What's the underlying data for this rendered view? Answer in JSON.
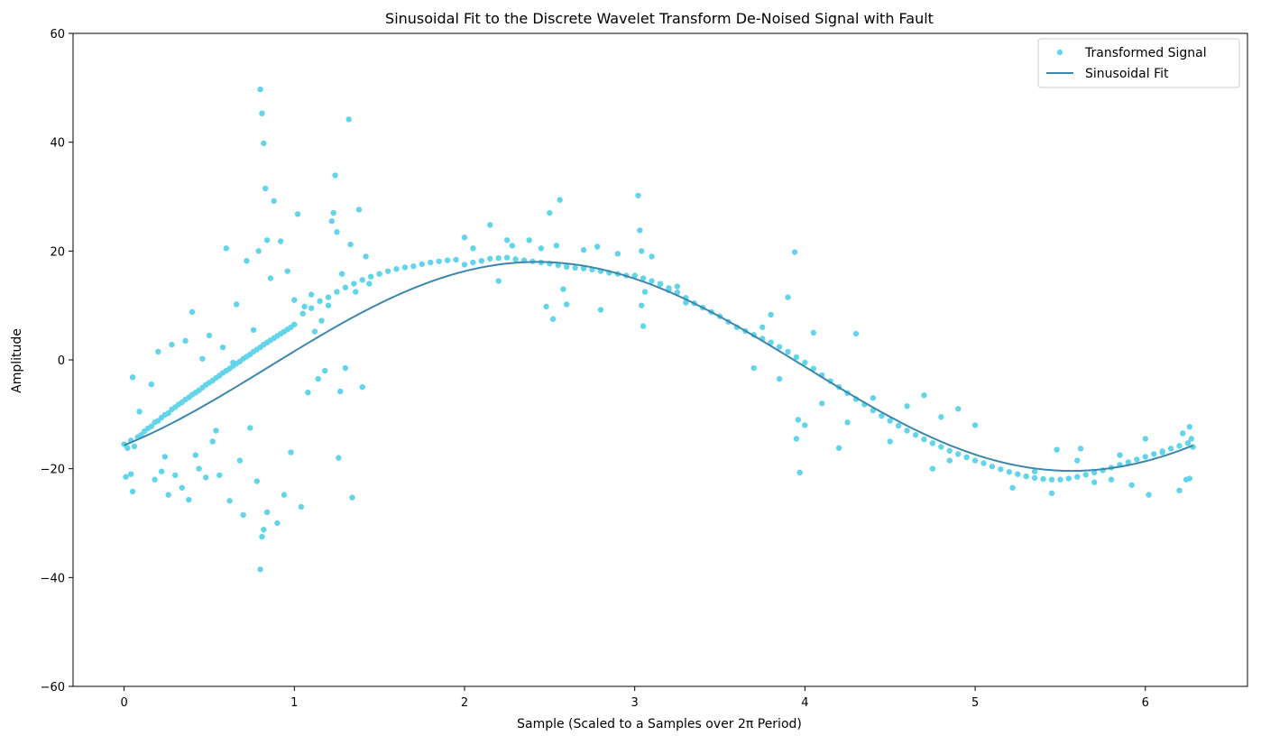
{
  "chart_data": {
    "type": "scatter",
    "title": "Sinusoidal Fit to the Discrete Wavelet Transform De-Noised Signal with Fault",
    "xlabel": "Sample (Scaled to a Samples over 2π Period)",
    "ylabel": "Amplitude",
    "xlim": [
      -0.3,
      6.6
    ],
    "ylim": [
      -60,
      60
    ],
    "xticks": [
      0,
      1,
      2,
      3,
      4,
      5,
      6
    ],
    "xtick_labels": [
      "0",
      "1",
      "2",
      "3",
      "4",
      "5",
      "6"
    ],
    "yticks": [
      -60,
      -40,
      -20,
      0,
      20,
      40,
      60
    ],
    "ytick_labels": [
      "−60",
      "−40",
      "−20",
      "0",
      "20",
      "40",
      "60"
    ],
    "grid": false,
    "legend_position": "top-right",
    "series": [
      {
        "name": "Transformed Signal",
        "kind": "scatter",
        "color": "#62d5ea",
        "points": [
          [
            0.0,
            -15.5
          ],
          [
            0.02,
            -16.2
          ],
          [
            0.04,
            -14.8
          ],
          [
            0.06,
            -15.9
          ],
          [
            0.08,
            -14.2
          ],
          [
            0.1,
            -13.8
          ],
          [
            0.12,
            -13.1
          ],
          [
            0.14,
            -12.6
          ],
          [
            0.16,
            -12.2
          ],
          [
            0.18,
            -11.5
          ],
          [
            0.2,
            -11.2
          ],
          [
            0.22,
            -10.6
          ],
          [
            0.24,
            -10.1
          ],
          [
            0.26,
            -9.8
          ],
          [
            0.28,
            -9.1
          ],
          [
            0.3,
            -8.7
          ],
          [
            0.32,
            -8.2
          ],
          [
            0.34,
            -7.8
          ],
          [
            0.36,
            -7.3
          ],
          [
            0.38,
            -6.9
          ],
          [
            0.4,
            -6.4
          ],
          [
            0.42,
            -6.0
          ],
          [
            0.44,
            -5.6
          ],
          [
            0.46,
            -5.1
          ],
          [
            0.48,
            -4.6
          ],
          [
            0.5,
            -4.2
          ],
          [
            0.52,
            -3.8
          ],
          [
            0.54,
            -3.3
          ],
          [
            0.56,
            -2.9
          ],
          [
            0.58,
            -2.4
          ],
          [
            0.6,
            -2.0
          ],
          [
            0.62,
            -1.6
          ],
          [
            0.64,
            -1.1
          ],
          [
            0.66,
            -0.7
          ],
          [
            0.68,
            -0.3
          ],
          [
            0.7,
            0.2
          ],
          [
            0.72,
            0.6
          ],
          [
            0.74,
            1.0
          ],
          [
            0.76,
            1.5
          ],
          [
            0.78,
            1.9
          ],
          [
            0.8,
            2.3
          ],
          [
            0.82,
            2.8
          ],
          [
            0.84,
            3.2
          ],
          [
            0.86,
            3.6
          ],
          [
            0.88,
            4.0
          ],
          [
            0.9,
            4.4
          ],
          [
            0.92,
            4.8
          ],
          [
            0.94,
            5.2
          ],
          [
            0.96,
            5.6
          ],
          [
            0.98,
            6.0
          ],
          [
            0.01,
            -21.5
          ],
          [
            0.05,
            -24.2
          ],
          [
            0.04,
            -21.0
          ],
          [
            0.05,
            -3.2
          ],
          [
            0.09,
            -9.5
          ],
          [
            0.16,
            -4.5
          ],
          [
            0.18,
            -22.0
          ],
          [
            0.2,
            1.5
          ],
          [
            0.22,
            -20.5
          ],
          [
            0.24,
            -17.8
          ],
          [
            0.26,
            -24.8
          ],
          [
            0.28,
            2.8
          ],
          [
            0.3,
            -21.2
          ],
          [
            0.34,
            -23.5
          ],
          [
            0.36,
            3.5
          ],
          [
            0.38,
            -25.7
          ],
          [
            0.4,
            8.8
          ],
          [
            0.42,
            -17.5
          ],
          [
            0.44,
            -20.0
          ],
          [
            0.46,
            0.2
          ],
          [
            0.48,
            -21.6
          ],
          [
            0.5,
            4.5
          ],
          [
            0.52,
            -15.0
          ],
          [
            0.54,
            -13.0
          ],
          [
            0.56,
            -21.2
          ],
          [
            0.58,
            2.3
          ],
          [
            0.6,
            20.5
          ],
          [
            0.62,
            -25.9
          ],
          [
            0.64,
            -0.5
          ],
          [
            0.66,
            10.2
          ],
          [
            0.68,
            -18.5
          ],
          [
            0.7,
            -28.5
          ],
          [
            0.72,
            18.2
          ],
          [
            0.74,
            -12.5
          ],
          [
            0.76,
            5.5
          ],
          [
            0.78,
            -22.3
          ],
          [
            0.8,
            49.7
          ],
          [
            0.81,
            45.3
          ],
          [
            0.82,
            39.8
          ],
          [
            0.83,
            31.5
          ],
          [
            0.84,
            22.0
          ],
          [
            0.79,
            20.0
          ],
          [
            0.8,
            -38.5
          ],
          [
            0.81,
            -32.5
          ],
          [
            0.82,
            -31.2
          ],
          [
            0.84,
            -28.0
          ],
          [
            0.86,
            15.0
          ],
          [
            0.88,
            29.2
          ],
          [
            0.9,
            -30.0
          ],
          [
            0.92,
            21.8
          ],
          [
            0.94,
            -24.8
          ],
          [
            0.96,
            16.3
          ],
          [
            0.98,
            -17.0
          ],
          [
            1.0,
            11.0
          ],
          [
            1.02,
            26.8
          ],
          [
            1.04,
            -27.0
          ],
          [
            1.06,
            9.8
          ],
          [
            1.08,
            -6.0
          ],
          [
            1.1,
            12.0
          ],
          [
            1.12,
            5.2
          ],
          [
            1.14,
            -3.5
          ],
          [
            1.16,
            7.2
          ],
          [
            1.18,
            -2.0
          ],
          [
            1.2,
            10.0
          ],
          [
            1.22,
            25.5
          ],
          [
            1.23,
            27.0
          ],
          [
            1.24,
            33.9
          ],
          [
            1.25,
            23.5
          ],
          [
            1.26,
            -18.0
          ],
          [
            1.27,
            -5.8
          ],
          [
            1.28,
            15.8
          ],
          [
            1.3,
            -1.5
          ],
          [
            1.32,
            44.2
          ],
          [
            1.33,
            21.2
          ],
          [
            1.34,
            -25.3
          ],
          [
            1.36,
            12.5
          ],
          [
            1.38,
            27.6
          ],
          [
            1.4,
            -5.0
          ],
          [
            1.42,
            19.0
          ],
          [
            1.44,
            14.0
          ],
          [
            1.0,
            6.5
          ],
          [
            1.05,
            8.5
          ],
          [
            1.1,
            9.5
          ],
          [
            1.15,
            10.8
          ],
          [
            1.2,
            11.5
          ],
          [
            1.25,
            12.5
          ],
          [
            1.3,
            13.3
          ],
          [
            1.35,
            14.0
          ],
          [
            1.4,
            14.7
          ],
          [
            1.45,
            15.3
          ],
          [
            1.5,
            15.8
          ],
          [
            1.55,
            16.3
          ],
          [
            1.6,
            16.7
          ],
          [
            1.65,
            17.0
          ],
          [
            1.7,
            17.2
          ],
          [
            1.75,
            17.6
          ],
          [
            1.8,
            17.9
          ],
          [
            1.85,
            18.1
          ],
          [
            1.9,
            18.3
          ],
          [
            1.95,
            18.4
          ],
          [
            2.0,
            17.5
          ],
          [
            2.05,
            17.9
          ],
          [
            2.1,
            18.2
          ],
          [
            2.15,
            18.6
          ],
          [
            2.2,
            18.7
          ],
          [
            2.25,
            18.8
          ],
          [
            2.3,
            18.5
          ],
          [
            2.35,
            18.3
          ],
          [
            2.4,
            18.1
          ],
          [
            2.45,
            17.9
          ],
          [
            2.5,
            17.7
          ],
          [
            2.55,
            17.4
          ],
          [
            2.6,
            17.1
          ],
          [
            2.65,
            16.9
          ],
          [
            2.7,
            16.8
          ],
          [
            2.75,
            16.6
          ],
          [
            2.8,
            16.3
          ],
          [
            2.85,
            16.0
          ],
          [
            2.9,
            15.8
          ],
          [
            2.95,
            15.5
          ],
          [
            2.0,
            22.5
          ],
          [
            2.05,
            20.5
          ],
          [
            2.15,
            24.8
          ],
          [
            2.2,
            14.5
          ],
          [
            2.25,
            22.0
          ],
          [
            2.28,
            21.0
          ],
          [
            2.38,
            22.0
          ],
          [
            2.45,
            20.5
          ],
          [
            2.48,
            9.8
          ],
          [
            2.5,
            27.0
          ],
          [
            2.52,
            7.5
          ],
          [
            2.54,
            21.0
          ],
          [
            2.56,
            29.4
          ],
          [
            2.58,
            13.0
          ],
          [
            2.6,
            10.2
          ],
          [
            2.7,
            20.2
          ],
          [
            2.78,
            20.8
          ],
          [
            2.8,
            9.2
          ],
          [
            2.9,
            19.5
          ],
          [
            3.02,
            30.2
          ],
          [
            3.03,
            23.8
          ],
          [
            3.04,
            20.0
          ],
          [
            3.04,
            10.0
          ],
          [
            3.05,
            6.2
          ],
          [
            3.06,
            12.5
          ],
          [
            3.1,
            19.0
          ],
          [
            3.15,
            14.0
          ],
          [
            3.2,
            12.8
          ],
          [
            3.25,
            13.5
          ],
          [
            3.3,
            10.5
          ],
          [
            3.0,
            15.5
          ],
          [
            3.05,
            15.0
          ],
          [
            3.1,
            14.5
          ],
          [
            3.15,
            13.9
          ],
          [
            3.2,
            13.2
          ],
          [
            3.25,
            12.4
          ],
          [
            3.3,
            11.4
          ],
          [
            3.35,
            10.4
          ],
          [
            3.4,
            9.6
          ],
          [
            3.45,
            8.8
          ],
          [
            3.5,
            8.0
          ],
          [
            3.55,
            7.0
          ],
          [
            3.6,
            6.0
          ],
          [
            3.65,
            5.3
          ],
          [
            3.7,
            4.6
          ],
          [
            3.75,
            3.9
          ],
          [
            3.8,
            3.2
          ],
          [
            3.85,
            2.4
          ],
          [
            3.9,
            1.5
          ],
          [
            3.95,
            0.5
          ],
          [
            4.0,
            -0.5
          ],
          [
            4.05,
            -1.6
          ],
          [
            4.1,
            -2.8
          ],
          [
            4.15,
            -3.9
          ],
          [
            4.2,
            -5.0
          ],
          [
            4.25,
            -6.1
          ],
          [
            4.3,
            -7.2
          ],
          [
            4.35,
            -8.2
          ],
          [
            4.4,
            -9.3
          ],
          [
            4.45,
            -10.3
          ],
          [
            4.5,
            -11.2
          ],
          [
            4.55,
            -12.1
          ],
          [
            4.6,
            -13.0
          ],
          [
            4.65,
            -13.8
          ],
          [
            4.7,
            -14.6
          ],
          [
            4.75,
            -15.3
          ],
          [
            4.8,
            -16.0
          ],
          [
            4.85,
            -16.7
          ],
          [
            4.9,
            -17.3
          ],
          [
            4.95,
            -17.9
          ],
          [
            3.7,
            -1.5
          ],
          [
            3.75,
            6.0
          ],
          [
            3.8,
            8.3
          ],
          [
            3.85,
            -3.5
          ],
          [
            3.9,
            11.5
          ],
          [
            3.94,
            19.8
          ],
          [
            3.95,
            -14.5
          ],
          [
            3.96,
            -11.0
          ],
          [
            3.97,
            -20.7
          ],
          [
            4.0,
            -12.0
          ],
          [
            4.05,
            5.0
          ],
          [
            4.1,
            -8.0
          ],
          [
            4.2,
            -16.2
          ],
          [
            4.25,
            -11.5
          ],
          [
            4.3,
            4.8
          ],
          [
            4.4,
            -7.0
          ],
          [
            4.5,
            -15.0
          ],
          [
            4.6,
            -8.5
          ],
          [
            4.7,
            -6.5
          ],
          [
            4.75,
            -20.0
          ],
          [
            4.8,
            -10.5
          ],
          [
            4.85,
            -18.5
          ],
          [
            4.9,
            -9.0
          ],
          [
            5.0,
            -12.0
          ],
          [
            5.0,
            -18.5
          ],
          [
            5.05,
            -19.0
          ],
          [
            5.1,
            -19.6
          ],
          [
            5.15,
            -20.1
          ],
          [
            5.2,
            -20.6
          ],
          [
            5.25,
            -21.0
          ],
          [
            5.3,
            -21.4
          ],
          [
            5.35,
            -21.7
          ],
          [
            5.4,
            -21.9
          ],
          [
            5.45,
            -22.0
          ],
          [
            5.5,
            -22.0
          ],
          [
            5.55,
            -21.8
          ],
          [
            5.6,
            -21.5
          ],
          [
            5.65,
            -21.1
          ],
          [
            5.7,
            -20.7
          ],
          [
            5.75,
            -20.3
          ],
          [
            5.8,
            -19.8
          ],
          [
            5.85,
            -19.3
          ],
          [
            5.9,
            -18.8
          ],
          [
            5.95,
            -18.3
          ],
          [
            6.0,
            -17.8
          ],
          [
            6.05,
            -17.3
          ],
          [
            6.1,
            -16.8
          ],
          [
            6.15,
            -16.3
          ],
          [
            6.2,
            -15.8
          ],
          [
            6.25,
            -15.3
          ],
          [
            5.22,
            -23.5
          ],
          [
            5.45,
            -24.5
          ],
          [
            5.48,
            -16.5
          ],
          [
            5.62,
            -16.3
          ],
          [
            5.8,
            -22.0
          ],
          [
            5.92,
            -23.0
          ],
          [
            6.0,
            -14.5
          ],
          [
            6.02,
            -24.8
          ],
          [
            6.1,
            -17.0
          ],
          [
            6.2,
            -24.0
          ],
          [
            6.22,
            -13.5
          ],
          [
            6.24,
            -22.0
          ],
          [
            6.26,
            -12.3
          ],
          [
            6.27,
            -14.5
          ],
          [
            6.28,
            -16.0
          ],
          [
            6.26,
            -21.8
          ],
          [
            5.35,
            -20.5
          ],
          [
            5.6,
            -18.5
          ],
          [
            5.7,
            -22.5
          ],
          [
            5.85,
            -17.5
          ]
        ]
      },
      {
        "name": "Sinusoidal Fit",
        "kind": "line",
        "color": "#3b87ae",
        "function": {
          "amplitude": 19.2,
          "phase": -0.855,
          "offset": -1.2,
          "x_start": 0,
          "x_end": 6.28
        }
      }
    ],
    "legend": [
      "Transformed Signal",
      "Sinusoidal Fit"
    ]
  }
}
